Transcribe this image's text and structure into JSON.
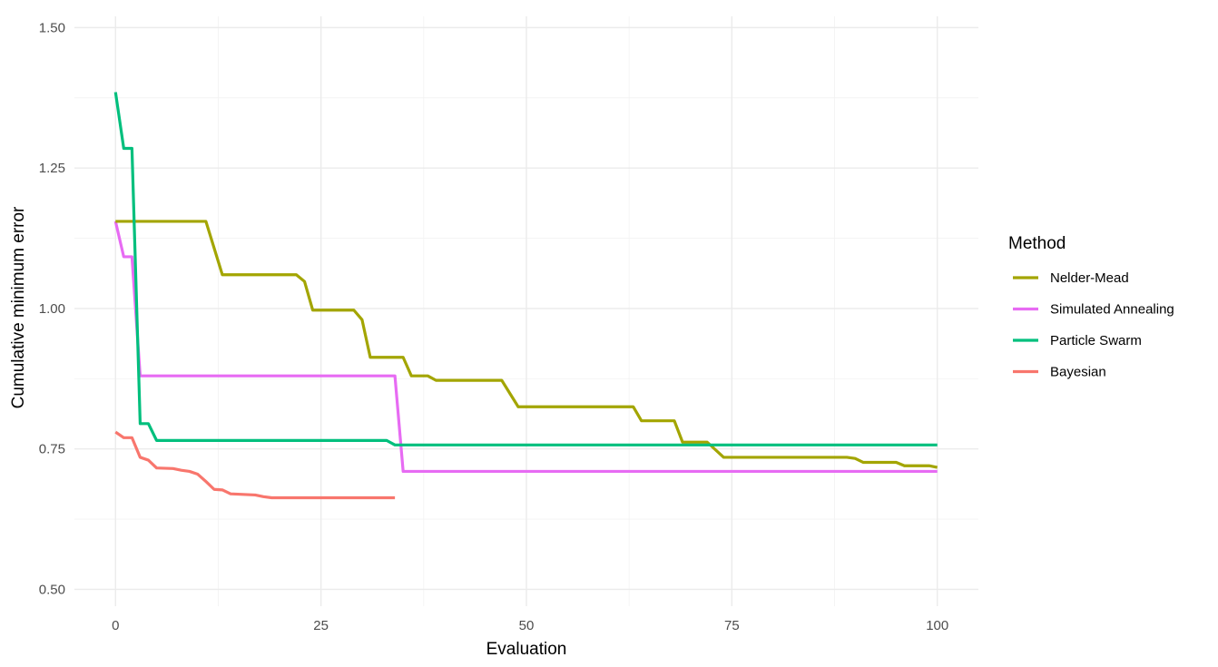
{
  "chart_data": {
    "type": "line",
    "title": "",
    "xlabel": "Evaluation",
    "ylabel": "Cumulative minimum error",
    "xlim": [
      -5,
      105
    ],
    "ylim": [
      0.47,
      1.52
    ],
    "x_ticks": [
      0,
      25,
      50,
      75,
      100
    ],
    "x_tick_labels": [
      "0",
      "25",
      "50",
      "75",
      "100"
    ],
    "y_ticks": [
      0.5,
      0.75,
      1.0,
      1.25,
      1.5
    ],
    "y_tick_labels": [
      "0.50",
      "0.75",
      "1.00",
      "1.25",
      "1.50"
    ],
    "x_minor": [
      12.5,
      37.5,
      62.5,
      87.5
    ],
    "y_minor": [
      0.625,
      0.875,
      1.125,
      1.375
    ],
    "grid": true,
    "legend": {
      "title": "Method",
      "position": "right"
    },
    "series": [
      {
        "name": "Nelder-Mead",
        "color": "#a3a500",
        "points": [
          [
            0,
            1.155
          ],
          [
            11,
            1.155
          ],
          [
            13,
            1.06
          ],
          [
            22,
            1.06
          ],
          [
            23,
            1.048
          ],
          [
            24,
            0.997
          ],
          [
            29,
            0.997
          ],
          [
            30,
            0.98
          ],
          [
            31,
            0.913
          ],
          [
            35,
            0.913
          ],
          [
            36,
            0.88
          ],
          [
            38,
            0.88
          ],
          [
            39,
            0.872
          ],
          [
            47,
            0.872
          ],
          [
            49,
            0.825
          ],
          [
            63,
            0.825
          ],
          [
            64,
            0.8
          ],
          [
            68,
            0.8
          ],
          [
            69,
            0.762
          ],
          [
            72,
            0.762
          ],
          [
            74,
            0.735
          ],
          [
            89,
            0.735
          ],
          [
            90,
            0.733
          ],
          [
            91,
            0.726
          ],
          [
            95,
            0.726
          ],
          [
            96,
            0.72
          ],
          [
            99,
            0.72
          ],
          [
            100,
            0.717
          ]
        ]
      },
      {
        "name": "Simulated Annealing",
        "color": "#e76bf3",
        "points": [
          [
            0,
            1.155
          ],
          [
            1,
            1.092
          ],
          [
            2,
            1.092
          ],
          [
            3,
            0.88
          ],
          [
            34,
            0.88
          ],
          [
            35,
            0.71
          ],
          [
            100,
            0.71
          ]
        ]
      },
      {
        "name": "Particle Swarm",
        "color": "#00bf7d",
        "points": [
          [
            0,
            1.385
          ],
          [
            1,
            1.285
          ],
          [
            2,
            1.285
          ],
          [
            3,
            0.795
          ],
          [
            4,
            0.795
          ],
          [
            5,
            0.765
          ],
          [
            33,
            0.765
          ],
          [
            34,
            0.757
          ],
          [
            100,
            0.757
          ]
        ]
      },
      {
        "name": "Bayesian",
        "color": "#f8766d",
        "points": [
          [
            0,
            0.78
          ],
          [
            1,
            0.77
          ],
          [
            2,
            0.77
          ],
          [
            3,
            0.735
          ],
          [
            4,
            0.73
          ],
          [
            5,
            0.716
          ],
          [
            7,
            0.715
          ],
          [
            8,
            0.712
          ],
          [
            9,
            0.71
          ],
          [
            10,
            0.705
          ],
          [
            11,
            0.692
          ],
          [
            12,
            0.678
          ],
          [
            13,
            0.677
          ],
          [
            14,
            0.67
          ],
          [
            17,
            0.668
          ],
          [
            18,
            0.665
          ],
          [
            19,
            0.663
          ],
          [
            34,
            0.663
          ]
        ]
      }
    ]
  }
}
